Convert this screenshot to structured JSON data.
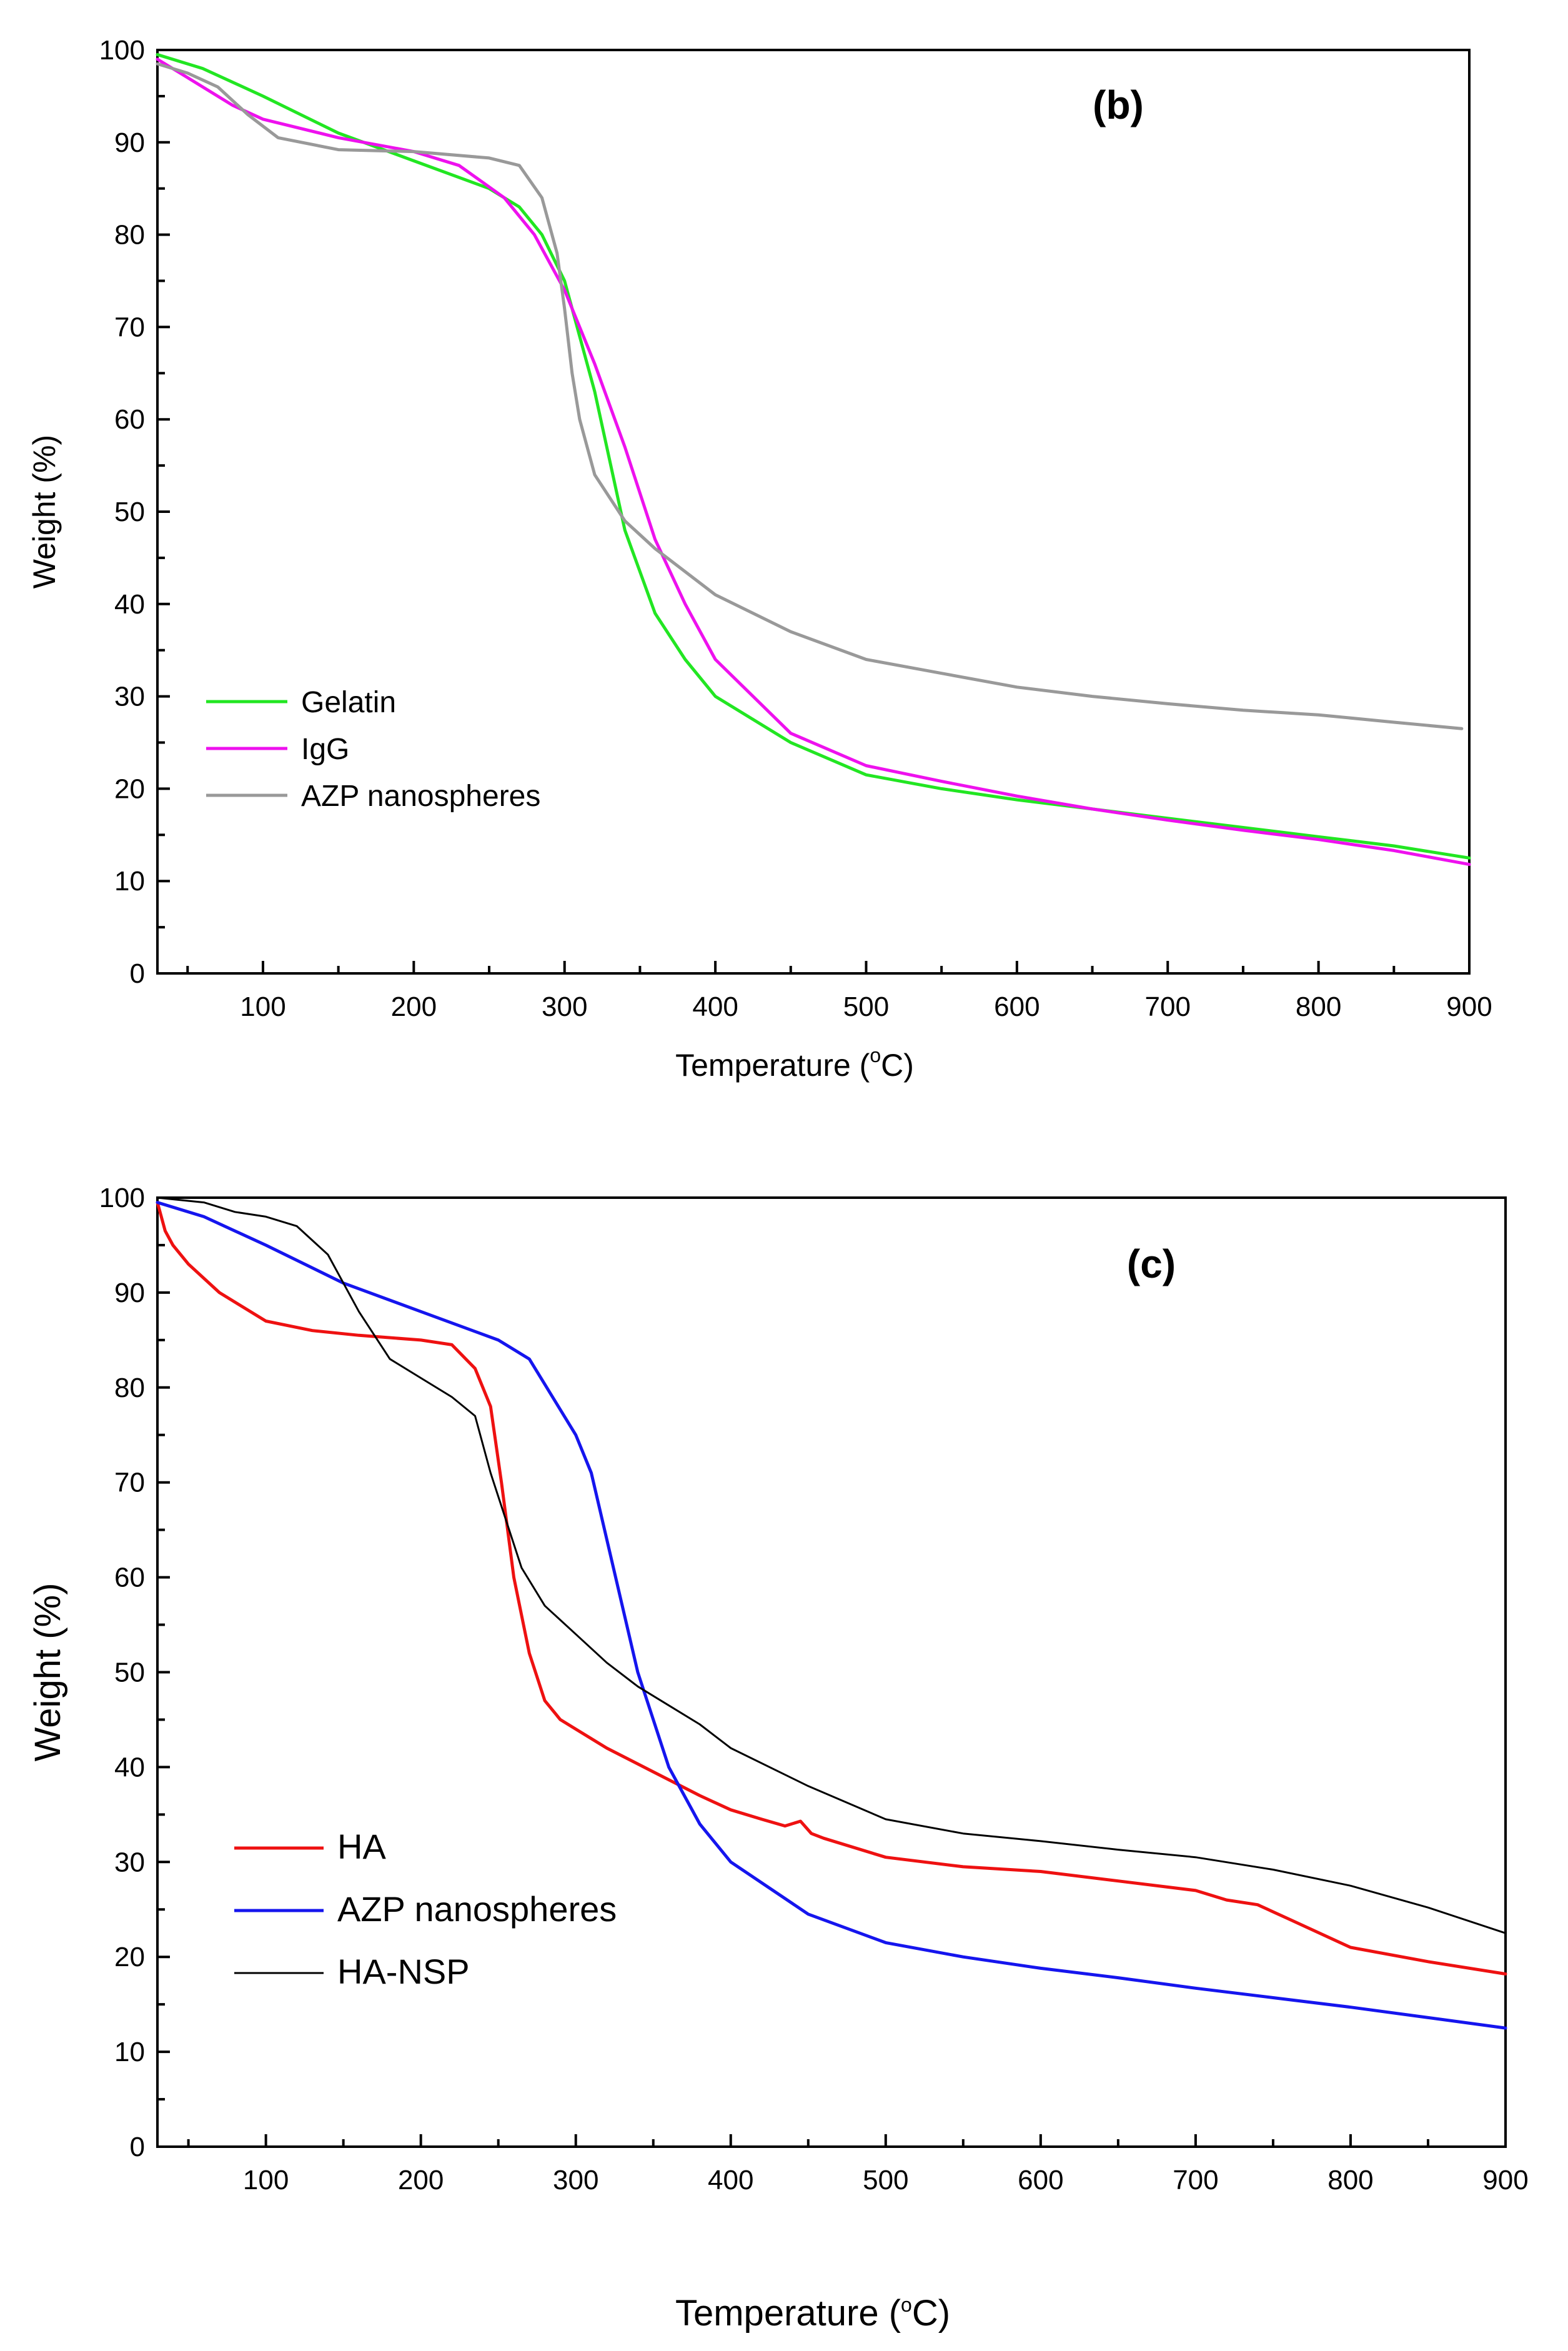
{
  "chart_data": [
    {
      "type": "line",
      "panel_label": "(b)",
      "xlabel_prefix": "Temperature (",
      "xlabel_sup": "o",
      "xlabel_suffix": "C)",
      "ylabel": "Weight (%)",
      "xlim": [
        30,
        900
      ],
      "ylim": [
        0,
        100
      ],
      "xticks": [
        100,
        200,
        300,
        400,
        500,
        600,
        700,
        800,
        900
      ],
      "yticks": [
        0,
        10,
        20,
        30,
        40,
        50,
        60,
        70,
        80,
        90,
        100
      ],
      "legend_position": "lower-left",
      "series": [
        {
          "name": "Gelatin",
          "color": "#22e622",
          "x": [
            30,
            60,
            100,
            150,
            200,
            250,
            270,
            285,
            300,
            320,
            340,
            360,
            380,
            400,
            450,
            500,
            550,
            600,
            650,
            700,
            750,
            800,
            850,
            900
          ],
          "y": [
            99.5,
            98,
            95,
            91,
            88,
            85,
            83,
            80,
            75,
            63,
            48,
            39,
            34,
            30,
            25,
            21.5,
            20,
            18.8,
            17.8,
            16.8,
            15.8,
            14.8,
            13.8,
            12.5
          ]
        },
        {
          "name": "IgG",
          "color": "#ee11ee",
          "x": [
            30,
            50,
            80,
            100,
            150,
            200,
            230,
            260,
            280,
            300,
            320,
            340,
            360,
            380,
            400,
            450,
            500,
            550,
            600,
            650,
            700,
            750,
            800,
            850,
            900
          ],
          "y": [
            99,
            97,
            94,
            92.5,
            90.5,
            89,
            87.5,
            84,
            80,
            74,
            66,
            57,
            47,
            40,
            34,
            26,
            22.5,
            20.8,
            19.2,
            17.8,
            16.6,
            15.5,
            14.5,
            13.3,
            11.8
          ]
        },
        {
          "name": "AZP nanospheres",
          "color": "#999999",
          "x": [
            30,
            50,
            70,
            90,
            110,
            150,
            200,
            250,
            270,
            285,
            295,
            300,
            305,
            310,
            320,
            340,
            360,
            400,
            450,
            500,
            550,
            600,
            650,
            700,
            750,
            800,
            850,
            895
          ],
          "y": [
            98.5,
            97.5,
            96,
            93,
            90.5,
            89.2,
            89,
            88.3,
            87.5,
            84,
            78,
            72,
            65,
            60,
            54,
            49,
            46,
            41,
            37,
            34,
            32.5,
            31,
            30,
            29.2,
            28.5,
            28,
            27.2,
            26.5
          ]
        }
      ]
    },
    {
      "type": "line",
      "panel_label": "(c)",
      "xlabel_prefix": "Temperature (",
      "xlabel_sup": "o",
      "xlabel_suffix": "C)",
      "ylabel": "Weight (%)",
      "xlim": [
        30,
        900
      ],
      "ylim": [
        0,
        100
      ],
      "xticks": [
        100,
        200,
        300,
        400,
        500,
        600,
        700,
        800,
        900
      ],
      "yticks": [
        0,
        10,
        20,
        30,
        40,
        50,
        60,
        70,
        80,
        90,
        100
      ],
      "legend_position": "lower-left",
      "series": [
        {
          "name": "HA",
          "color": "#ee1111",
          "x": [
            30,
            35,
            40,
            50,
            70,
            100,
            130,
            160,
            200,
            220,
            235,
            245,
            252,
            260,
            270,
            280,
            290,
            300,
            320,
            350,
            380,
            400,
            420,
            435,
            445,
            452,
            460,
            500,
            550,
            600,
            650,
            700,
            720,
            740,
            760,
            800,
            850,
            900
          ],
          "y": [
            99.5,
            96.5,
            95,
            93,
            90,
            87,
            86,
            85.5,
            85,
            84.5,
            82,
            78,
            70,
            60,
            52,
            47,
            45,
            44,
            42,
            39.5,
            37,
            35.5,
            34.5,
            33.8,
            34.3,
            33,
            32.5,
            30.5,
            29.5,
            29,
            28,
            27,
            26,
            25.5,
            24,
            21,
            19.5,
            18.2
          ]
        },
        {
          "name": "AZP nanospheres",
          "color": "#1515ee",
          "x": [
            30,
            60,
            100,
            150,
            200,
            250,
            270,
            285,
            300,
            310,
            320,
            340,
            360,
            380,
            400,
            450,
            500,
            550,
            600,
            650,
            700,
            750,
            800,
            850,
            900
          ],
          "y": [
            99.5,
            98,
            95,
            91,
            88,
            85,
            83,
            79,
            75,
            71,
            64,
            50,
            40,
            34,
            30,
            24.5,
            21.5,
            20,
            18.8,
            17.8,
            16.7,
            15.7,
            14.7,
            13.6,
            12.5
          ]
        },
        {
          "name": "HA-NSP",
          "color": "#000000",
          "x": [
            30,
            60,
            80,
            100,
            120,
            140,
            160,
            180,
            200,
            220,
            235,
            245,
            255,
            265,
            280,
            300,
            320,
            340,
            360,
            380,
            400,
            450,
            500,
            550,
            600,
            650,
            700,
            750,
            800,
            850,
            900
          ],
          "y": [
            100,
            99.5,
            98.5,
            98,
            97,
            94,
            88,
            83,
            81,
            79,
            77,
            71,
            66,
            61,
            57,
            54,
            51,
            48.5,
            46.5,
            44.5,
            42,
            38,
            34.5,
            33,
            32.2,
            31.3,
            30.5,
            29.2,
            27.5,
            25.2,
            22.5
          ]
        }
      ]
    }
  ]
}
